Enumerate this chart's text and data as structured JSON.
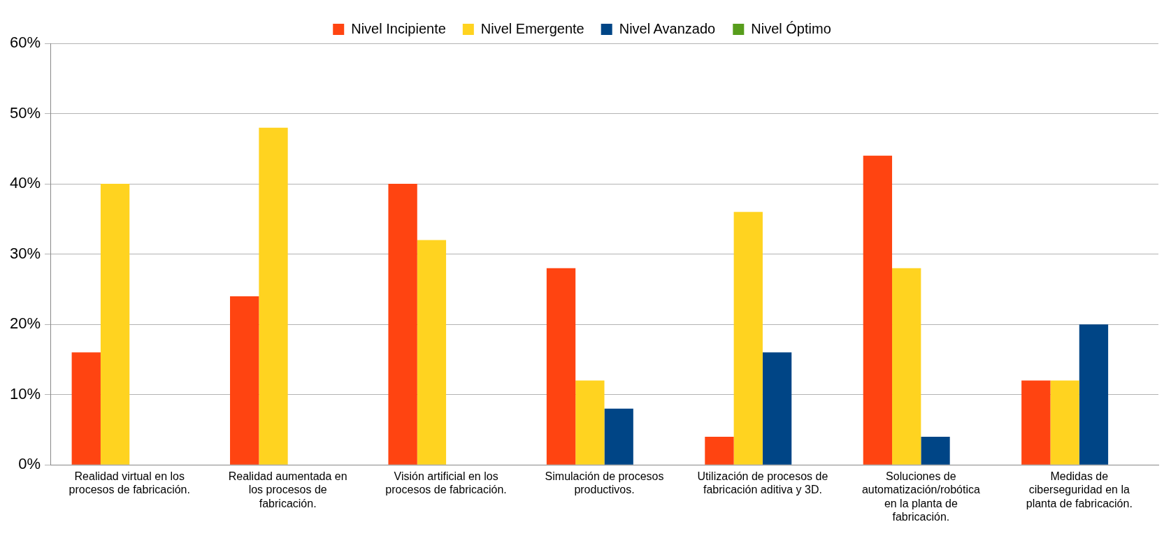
{
  "chart_data": {
    "type": "bar",
    "categories": [
      "Realidad virtual en los procesos de fabricación.",
      "Realidad aumentada en los procesos de fabricación.",
      "Visión artificial en los procesos de fabricación.",
      "Simulación de procesos productivos.",
      "Utilización de procesos de fabricación aditiva y 3D.",
      "Soluciones de automatización/robótica en la planta de fabricación.",
      "Medidas de ciberseguridad en la planta de fabricación."
    ],
    "series": [
      {
        "name": "Nivel Incipiente",
        "color": "#ff4411",
        "values": [
          16,
          24,
          40,
          28,
          4,
          44,
          12
        ]
      },
      {
        "name": "Nivel Emergente",
        "color": "#ffd320",
        "values": [
          40,
          48,
          32,
          12,
          36,
          28,
          12
        ]
      },
      {
        "name": "Nivel Avanzado",
        "color": "#004586",
        "values": [
          0,
          0,
          0,
          8,
          16,
          4,
          20
        ]
      },
      {
        "name": "Nivel Óptimo",
        "color": "#579d1c",
        "values": [
          0,
          0,
          0,
          0,
          0,
          0,
          0
        ]
      }
    ],
    "ylim": [
      0,
      60
    ],
    "yticks": [
      {
        "value": 0,
        "label": "0%"
      },
      {
        "value": 10,
        "label": "10%"
      },
      {
        "value": 20,
        "label": "20%"
      },
      {
        "value": 30,
        "label": "30%"
      },
      {
        "value": 40,
        "label": "40%"
      },
      {
        "value": 50,
        "label": "50%"
      },
      {
        "value": 60,
        "label": "60%"
      }
    ],
    "grid": "y",
    "legend": "top"
  }
}
